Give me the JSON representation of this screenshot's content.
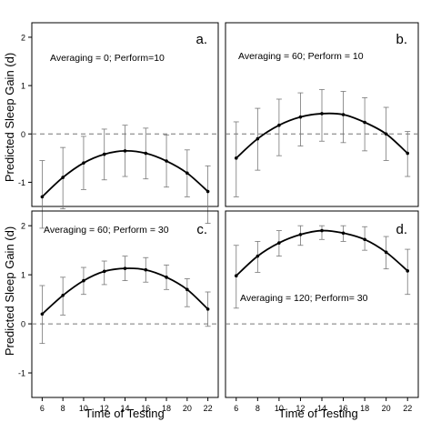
{
  "figure": {
    "ylabel": "Predicted Sleep Gain (d)",
    "xlabel": "Time of Testing"
  },
  "chart_data": [
    {
      "type": "line",
      "panel_label": "a.",
      "annotation": "Averaging = 0; Perform=10",
      "x": [
        6,
        8,
        10,
        12,
        14,
        16,
        18,
        20,
        22
      ],
      "y": [
        -1.3,
        -0.9,
        -0.6,
        -0.42,
        -0.35,
        -0.4,
        -0.56,
        -0.81,
        -1.19
      ],
      "err_low": [
        -1.95,
        -1.55,
        -1.15,
        -0.95,
        -0.88,
        -0.93,
        -1.1,
        -1.3,
        -1.85
      ],
      "err_high": [
        -0.55,
        -0.28,
        -0.05,
        0.1,
        0.18,
        0.12,
        -0.02,
        -0.33,
        -0.66
      ],
      "ylim": [
        -1.5,
        2.3
      ],
      "xticks": [
        6,
        8,
        10,
        12,
        14,
        16,
        18,
        20,
        22
      ],
      "yticks": [
        -1,
        0,
        1,
        2
      ],
      "reference_line": 0
    },
    {
      "type": "line",
      "panel_label": "b.",
      "annotation": "Averaging = 60; Perform = 10",
      "x": [
        6,
        8,
        10,
        12,
        14,
        16,
        18,
        20,
        22
      ],
      "y": [
        -0.5,
        -0.1,
        0.18,
        0.35,
        0.42,
        0.4,
        0.24,
        0.0,
        -0.4
      ],
      "err_low": [
        -1.3,
        -0.75,
        -0.45,
        -0.25,
        -0.15,
        -0.18,
        -0.35,
        -0.55,
        -0.88
      ],
      "err_high": [
        0.25,
        0.53,
        0.72,
        0.85,
        0.92,
        0.88,
        0.75,
        0.55,
        0.05
      ],
      "ylim": [
        -1.5,
        2.3
      ],
      "xticks": [
        6,
        8,
        10,
        12,
        14,
        16,
        18,
        20,
        22
      ],
      "yticks": [
        -1,
        0,
        1,
        2
      ],
      "reference_line": 0
    },
    {
      "type": "line",
      "panel_label": "c.",
      "annotation": "Averaging = 60; Perform = 30",
      "x": [
        6,
        8,
        10,
        12,
        14,
        16,
        18,
        20,
        22
      ],
      "y": [
        0.2,
        0.58,
        0.88,
        1.07,
        1.13,
        1.1,
        0.95,
        0.7,
        0.3
      ],
      "err_low": [
        -0.4,
        0.18,
        0.6,
        0.8,
        0.88,
        0.85,
        0.7,
        0.35,
        -0.05
      ],
      "err_high": [
        0.78,
        0.95,
        1.15,
        1.28,
        1.38,
        1.35,
        1.2,
        0.92,
        0.65
      ],
      "ylim": [
        -1.5,
        2.3
      ],
      "xticks": [
        6,
        8,
        10,
        12,
        14,
        16,
        18,
        20,
        22
      ],
      "yticks": [
        -1,
        0,
        1,
        2
      ],
      "reference_line": 0
    },
    {
      "type": "line",
      "panel_label": "d.",
      "annotation": "Averaging = 120; Perform= 30",
      "x": [
        6,
        8,
        10,
        12,
        14,
        16,
        18,
        20,
        22
      ],
      "y": [
        0.98,
        1.38,
        1.65,
        1.82,
        1.9,
        1.85,
        1.72,
        1.46,
        1.08
      ],
      "err_low": [
        0.32,
        1.05,
        1.38,
        1.6,
        1.72,
        1.68,
        1.5,
        1.12,
        0.6
      ],
      "err_high": [
        1.6,
        1.68,
        1.9,
        2.0,
        2.0,
        2.0,
        1.98,
        1.78,
        1.52
      ],
      "ylim": [
        -1.5,
        2.3
      ],
      "xticks": [
        6,
        8,
        10,
        12,
        14,
        16,
        18,
        20,
        22
      ],
      "yticks": [
        -1,
        0,
        1,
        2
      ],
      "reference_line": 0
    }
  ]
}
